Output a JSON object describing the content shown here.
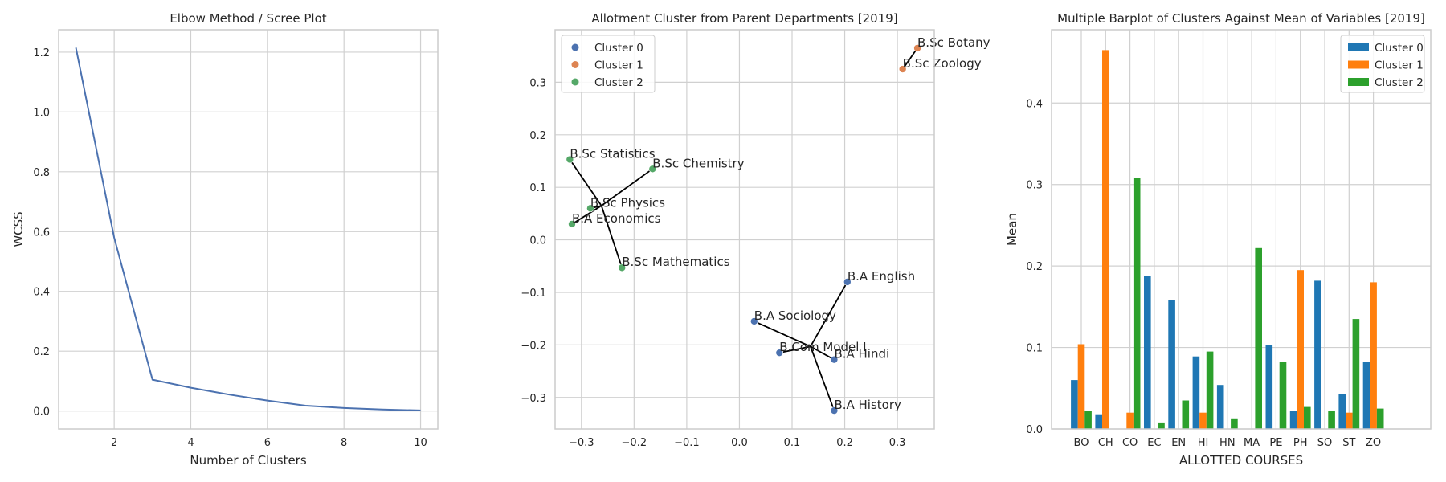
{
  "colors": {
    "line": "#4c72b0",
    "scatter": [
      "#4c72b0",
      "#dd8452",
      "#55a868"
    ],
    "bars": [
      "#1f77b4",
      "#ff7f0e",
      "#2ca02c"
    ],
    "connector": "#000000"
  },
  "chart_data": [
    {
      "type": "line",
      "title": "Elbow Method / Scree Plot",
      "xlabel": "Number of Clusters",
      "ylabel": "WCSS",
      "x": [
        1,
        2,
        3,
        4,
        5,
        6,
        7,
        8,
        9,
        10
      ],
      "y": [
        1.215,
        0.58,
        0.105,
        0.078,
        0.055,
        0.035,
        0.018,
        0.01,
        0.005,
        0.002
      ],
      "xlim": [
        0.55,
        10.45
      ],
      "ylim": [
        -0.06,
        1.275
      ],
      "xticks": [
        2,
        4,
        6,
        8,
        10
      ],
      "xtick_labels": [
        "2",
        "4",
        "6",
        "8",
        "10"
      ],
      "yticks": [
        0.0,
        0.2,
        0.4,
        0.6,
        0.8,
        1.0,
        1.2
      ],
      "ytick_labels": [
        "0.0",
        "0.2",
        "0.4",
        "0.6",
        "0.8",
        "1.0",
        "1.2"
      ],
      "grid": true
    },
    {
      "type": "scatter",
      "title": "Allotment Cluster from Parent Departments [2019]",
      "xlabel": "",
      "ylabel": "",
      "xlim": [
        -0.35,
        0.37
      ],
      "ylim": [
        -0.36,
        0.4
      ],
      "xticks": [
        -0.3,
        -0.2,
        -0.1,
        0.0,
        0.1,
        0.2,
        0.3
      ],
      "xtick_labels": [
        "−0.3",
        "−0.2",
        "−0.1",
        "0.0",
        "0.1",
        "0.2",
        "0.3"
      ],
      "yticks": [
        -0.3,
        -0.2,
        -0.1,
        0.0,
        0.1,
        0.2,
        0.3
      ],
      "ytick_labels": [
        "−0.3",
        "−0.2",
        "−0.1",
        "0.0",
        "0.1",
        "0.2",
        "0.3"
      ],
      "grid": true,
      "legend": "top-left",
      "series": [
        {
          "name": "Cluster 0",
          "points": [
            {
              "label": "B.A English",
              "x": 0.205,
              "y": -0.08
            },
            {
              "label": "B.A Sociology",
              "x": 0.028,
              "y": -0.155
            },
            {
              "label": "B.Com Model I",
              "x": 0.076,
              "y": -0.215
            },
            {
              "label": "B.A Hindi",
              "x": 0.18,
              "y": -0.228
            },
            {
              "label": "B.A History",
              "x": 0.18,
              "y": -0.325
            }
          ],
          "center": [
            0.135,
            -0.203
          ]
        },
        {
          "name": "Cluster 1",
          "points": [
            {
              "label": "B.Sc Botany",
              "x": 0.338,
              "y": 0.365
            },
            {
              "label": "B.Sc Zoology",
              "x": 0.31,
              "y": 0.325
            }
          ],
          "center": [
            0.324,
            0.345
          ]
        },
        {
          "name": "Cluster 2",
          "points": [
            {
              "label": "B.Sc Statistics",
              "x": -0.322,
              "y": 0.153
            },
            {
              "label": "B.Sc Chemistry",
              "x": -0.165,
              "y": 0.135
            },
            {
              "label": "B.Sc Physics",
              "x": -0.283,
              "y": 0.06
            },
            {
              "label": "B.A Economics",
              "x": -0.318,
              "y": 0.03
            },
            {
              "label": "B.Sc Mathematics",
              "x": -0.223,
              "y": -0.053
            }
          ],
          "center": [
            -0.262,
            0.065
          ]
        }
      ]
    },
    {
      "type": "bar",
      "title": "Multiple Barplot of Clusters Against Mean of Variables [2019]",
      "xlabel": "ALLOTTED COURSES",
      "ylabel": "Mean",
      "categories": [
        "BO",
        "CH",
        "CO",
        "EC",
        "EN",
        "HI",
        "HN",
        "MA",
        "PE",
        "PH",
        "SO",
        "ST",
        "ZO"
      ],
      "ylim": [
        0,
        0.49
      ],
      "yticks": [
        0.0,
        0.1,
        0.2,
        0.3,
        0.4
      ],
      "ytick_labels": [
        "0.0",
        "0.1",
        "0.2",
        "0.3",
        "0.4"
      ],
      "grid": true,
      "legend": "top-right",
      "series": [
        {
          "name": "Cluster 0",
          "values": [
            0.06,
            0.018,
            0.0,
            0.188,
            0.158,
            0.089,
            0.054,
            0.0,
            0.103,
            0.022,
            0.182,
            0.043,
            0.082
          ]
        },
        {
          "name": "Cluster 1",
          "values": [
            0.104,
            0.465,
            0.02,
            0.0,
            0.0,
            0.02,
            0.0,
            0.0,
            0.0,
            0.195,
            0.0,
            0.02,
            0.18
          ]
        },
        {
          "name": "Cluster 2",
          "values": [
            0.022,
            0.0,
            0.308,
            0.008,
            0.035,
            0.095,
            0.013,
            0.222,
            0.082,
            0.027,
            0.022,
            0.135,
            0.025
          ]
        }
      ]
    }
  ]
}
